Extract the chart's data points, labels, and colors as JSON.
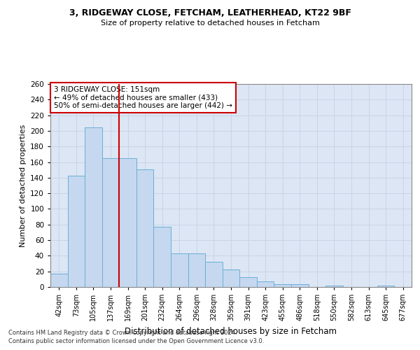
{
  "title1": "3, RIDGEWAY CLOSE, FETCHAM, LEATHERHEAD, KT22 9BF",
  "title2": "Size of property relative to detached houses in Fetcham",
  "xlabel": "Distribution of detached houses by size in Fetcham",
  "ylabel": "Number of detached properties",
  "footer1": "Contains HM Land Registry data © Crown copyright and database right 2024.",
  "footer2": "Contains public sector information licensed under the Open Government Licence v3.0.",
  "bin_labels": [
    "42sqm",
    "73sqm",
    "105sqm",
    "137sqm",
    "169sqm",
    "201sqm",
    "232sqm",
    "264sqm",
    "296sqm",
    "328sqm",
    "359sqm",
    "391sqm",
    "423sqm",
    "455sqm",
    "486sqm",
    "518sqm",
    "550sqm",
    "582sqm",
    "613sqm",
    "645sqm",
    "677sqm"
  ],
  "bar_values": [
    17,
    143,
    204,
    165,
    165,
    151,
    77,
    43,
    43,
    32,
    22,
    13,
    7,
    4,
    4,
    0,
    2,
    0,
    0,
    2,
    0
  ],
  "bar_color": "#c5d8f0",
  "bar_edge_color": "#6baed6",
  "annotation_text": "3 RIDGEWAY CLOSE: 151sqm\n← 49% of detached houses are smaller (433)\n50% of semi-detached houses are larger (442) →",
  "vline_color": "#cc0000",
  "vline_pos": 3.5,
  "annotation_box_color": "#ffffff",
  "annotation_box_edge": "#cc0000",
  "grid_color": "#c8d4e8",
  "background_color": "#dce6f4",
  "ylim": [
    0,
    260
  ],
  "yticks": [
    0,
    20,
    40,
    60,
    80,
    100,
    120,
    140,
    160,
    180,
    200,
    220,
    240,
    260
  ]
}
